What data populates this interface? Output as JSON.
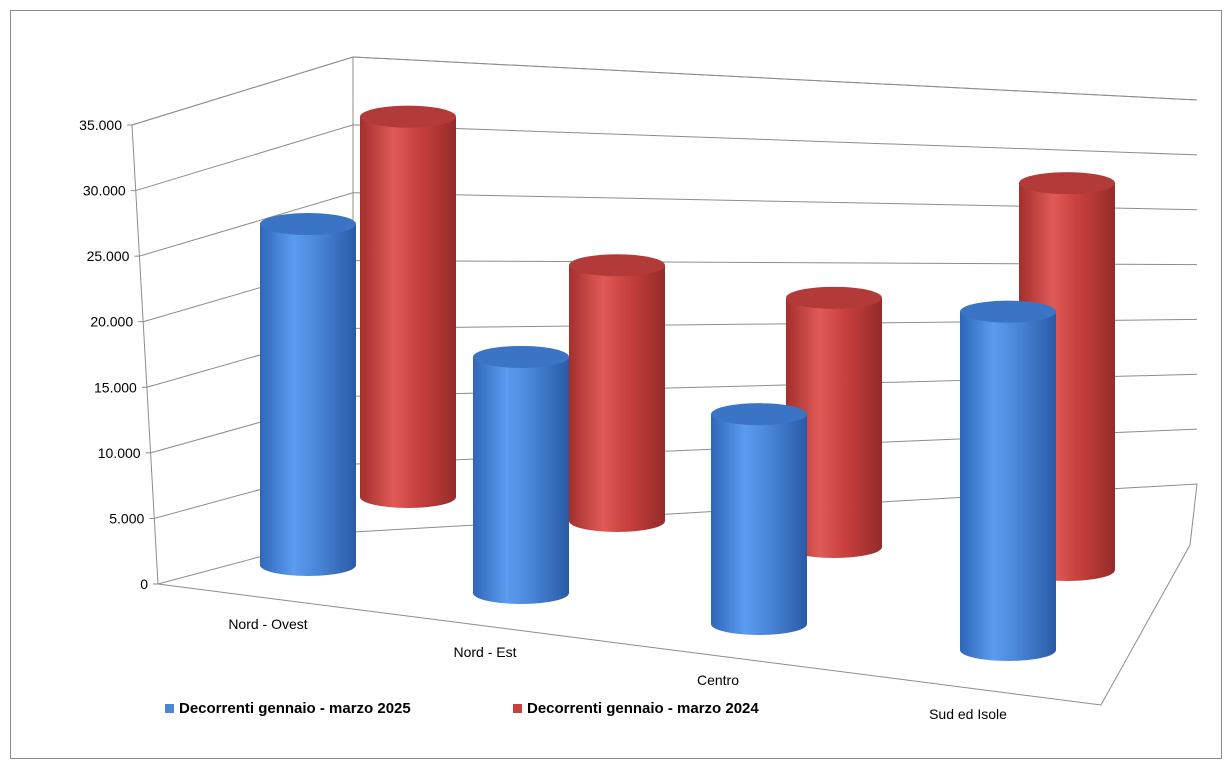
{
  "chart_data": {
    "type": "bar",
    "style": "3d-cylinder",
    "categories": [
      "Nord - Ovest",
      "Nord - Est",
      "Centro",
      "Sud ed Isole"
    ],
    "series": [
      {
        "name": "Decorrenti gennaio - marzo 2025",
        "values": [
          26000,
          18000,
          16000,
          25800
        ],
        "color": "#4a86d8"
      },
      {
        "name": "Decorrenti gennaio - marzo 2024",
        "values": [
          29000,
          19500,
          19000,
          29500
        ],
        "color": "#c9413f"
      }
    ],
    "yticks": [
      "0",
      "5.000",
      "10.000",
      "15.000",
      "20.000",
      "25.000",
      "30.000",
      "35.000"
    ],
    "ylim": [
      0,
      35000
    ],
    "grid": true,
    "legend": "bottom-left"
  }
}
